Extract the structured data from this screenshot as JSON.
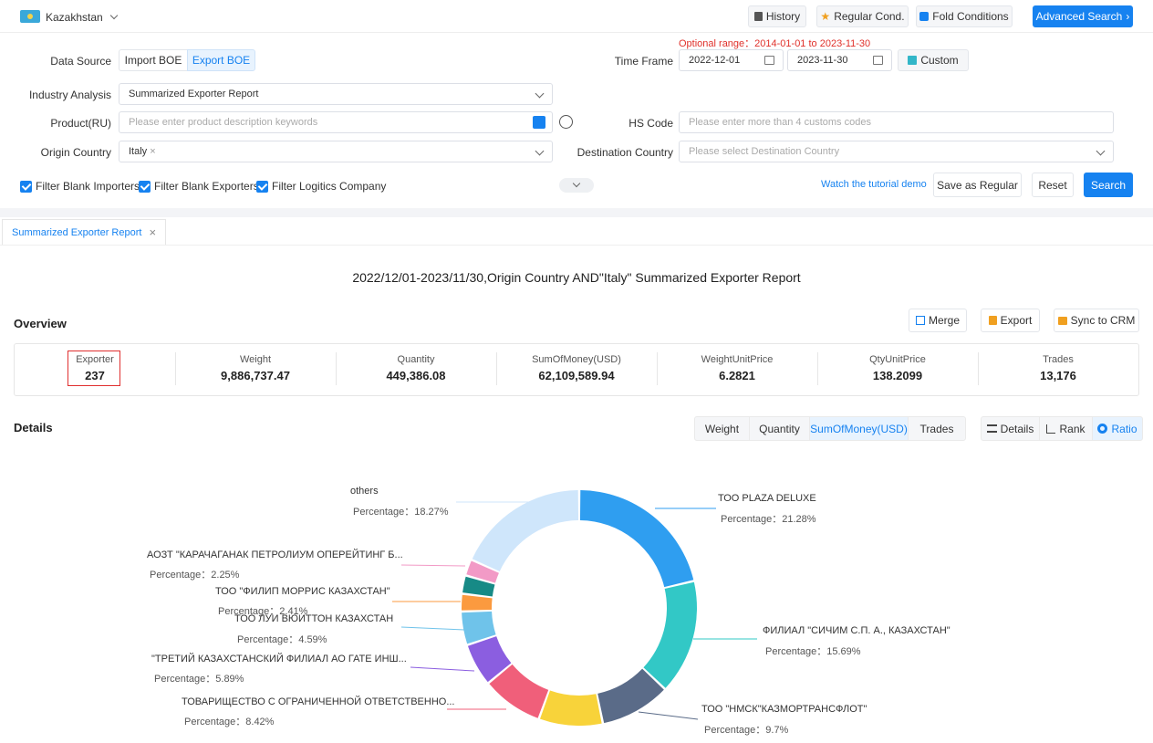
{
  "topbar": {
    "country": "Kazakhstan",
    "history": "History",
    "regular_cond": "Regular Cond.",
    "fold_conditions": "Fold Conditions",
    "advanced_search": "Advanced Search"
  },
  "form": {
    "optional_range": "Optional range：2014-01-01 to 2023-11-30",
    "data_source_label": "Data Source",
    "import_boe": "Import BOE",
    "export_boe": "Export BOE",
    "time_frame_label": "Time Frame",
    "date_from": "2022-12-01",
    "date_to": "2023-11-30",
    "custom": "Custom",
    "industry_label": "Industry Analysis",
    "industry_value": "Summarized Exporter Report",
    "product_label": "Product(RU)",
    "product_placeholder": "Please enter product description keywords",
    "hs_label": "HS Code",
    "hs_placeholder": "Please enter more than 4 customs codes",
    "origin_label": "Origin Country",
    "origin_tag": "Italy",
    "dest_label": "Destination Country",
    "dest_placeholder": "Please select Destination Country",
    "filter_importers": "Filter Blank Importers",
    "filter_exporters": "Filter Blank Exporters",
    "filter_logistics": "Filter Logitics Company",
    "tutorial": "Watch the tutorial demo",
    "save_regular": "Save as Regular",
    "reset": "Reset",
    "search": "Search"
  },
  "report": {
    "tab": "Summarized Exporter Report",
    "title": "2022/12/01-2023/11/30,Origin Country AND\"Italy\" Summarized Exporter Report",
    "overview": "Overview",
    "merge": "Merge",
    "export": "Export",
    "sync": "Sync to CRM",
    "stats": [
      {
        "label": "Exporter",
        "value": "237"
      },
      {
        "label": "Weight",
        "value": "9,886,737.47"
      },
      {
        "label": "Quantity",
        "value": "449,386.08"
      },
      {
        "label": "SumOfMoney(USD)",
        "value": "62,109,589.94"
      },
      {
        "label": "WeightUnitPrice",
        "value": "6.2821"
      },
      {
        "label": "QtyUnitPrice",
        "value": "138.2099"
      },
      {
        "label": "Trades",
        "value": "13,176"
      }
    ],
    "details": "Details",
    "metric_tabs": [
      "Weight",
      "Quantity",
      "SumOfMoney(USD)",
      "Trades"
    ],
    "view_tabs": [
      "Details",
      "Rank",
      "Ratio"
    ]
  },
  "chart_data": {
    "type": "pie",
    "style": "donut",
    "metric": "SumOfMoney(USD)",
    "percentage_label": "Percentage：",
    "slices": [
      {
        "name": "ТОО PLAZA DELUXE",
        "pct": "21.28%",
        "value": 21.28,
        "color": "#2f9ef0"
      },
      {
        "name": "ФИЛИАЛ \"СИЧИМ С.П. А., КАЗАХСТАН\"",
        "pct": "15.69%",
        "value": 15.69,
        "color": "#32c8c6"
      },
      {
        "name": "ТОО \"НМСК\"КАЗМОРТРАНСФЛОТ\"",
        "pct": "9.7%",
        "value": 9.7,
        "color": "#5a6b88"
      },
      {
        "name": "",
        "pct": "",
        "value": 8.77,
        "color": "#f8d33a"
      },
      {
        "name": "ТОВАРИЩЕСТВО С ОГРАНИЧЕННОЙ ОТВЕТСТВЕННО...",
        "pct": "8.42%",
        "value": 8.42,
        "color": "#f05f7a"
      },
      {
        "name": "\"ТРЕТИЙ КАЗАХСТАНСКИЙ ФИЛИАЛ АО ГАТЕ ИНШ...",
        "pct": "5.89%",
        "value": 5.89,
        "color": "#8b5ee0"
      },
      {
        "name": "ТОО ЛУИ ВЮИТТОН КАЗАХСТАН",
        "pct": "4.59%",
        "value": 4.59,
        "color": "#6fc3ea"
      },
      {
        "name": "ТОО \"ФИЛИП МОРРИС КАЗАХСТАН\"",
        "pct": "2.41%",
        "value": 2.41,
        "color": "#fb9a3f"
      },
      {
        "name": "",
        "pct": "",
        "value": 2.5,
        "color": "#178a86"
      },
      {
        "name": "АОЗТ \"КАРАЧАГАНАК ПЕТРОЛИУМ ОПЕРЕЙТИНГ Б...",
        "pct": "2.25%",
        "value": 2.25,
        "color": "#f29ac6"
      },
      {
        "name": "others",
        "pct": "18.27%",
        "value": 18.27,
        "color": "#cfe6fb"
      }
    ]
  }
}
